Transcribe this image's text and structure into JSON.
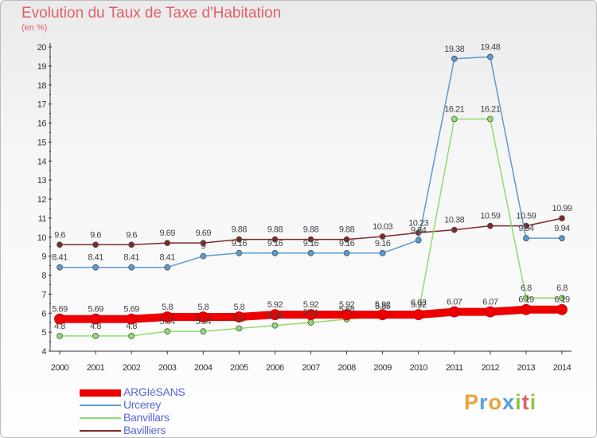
{
  "title": "Evolution du Taux de Taxe d'Habitation",
  "unit_label": "(en %)",
  "logo": {
    "letters": [
      "P",
      "r",
      "o",
      "x",
      "i",
      "t",
      "i"
    ],
    "colors": [
      "#e8a33b",
      "#5aa0d8",
      "#e8a33b",
      "#5aa0d8",
      "#8dc63f",
      "#e0606a",
      "#8dc63f"
    ]
  },
  "chart_data": {
    "type": "line",
    "categories": [
      "2000",
      "2001",
      "2002",
      "2003",
      "2004",
      "2005",
      "2006",
      "2007",
      "2008",
      "2009",
      "2010",
      "2011",
      "2012",
      "2013",
      "2014"
    ],
    "ylim": [
      4,
      20
    ],
    "yticks": [
      "4",
      "5",
      "6",
      "7",
      "8",
      "9",
      "10",
      "11",
      "12",
      "13",
      "14",
      "15",
      "16",
      "17",
      "18",
      "19",
      "20"
    ],
    "grid": false,
    "legend_position": "bottom-left",
    "series": [
      {
        "name": "Bavilliers",
        "color": "#7d2a2a",
        "values": [
          9.6,
          9.6,
          9.6,
          9.69,
          9.69,
          9.88,
          9.88,
          9.88,
          9.88,
          10.03,
          10.23,
          10.38,
          10.59,
          10.59,
          10.99
        ],
        "labels": [
          "9.6",
          "9.6",
          "9.6",
          "9.69",
          "9.69",
          "9.88",
          "9.88",
          "9.88",
          "9.88",
          "10.03",
          "10.23",
          "10.38",
          "10.59",
          "10.59",
          "10.99"
        ]
      },
      {
        "name": "Urcerey",
        "color": "#5a9bd4",
        "values": [
          8.41,
          8.41,
          8.41,
          8.41,
          9,
          9.16,
          9.16,
          9.16,
          9.16,
          9.16,
          9.84,
          19.38,
          19.48,
          9.94,
          9.94
        ],
        "labels": [
          "8.41",
          "8.41",
          "8.41",
          "8.41",
          "9",
          "9.16",
          "9.16",
          "9.16",
          "9.16",
          "9.16",
          "9.84",
          "19.38",
          "19.48",
          "9.94",
          "9.94"
        ]
      },
      {
        "name": "Banvillars",
        "color": "#8fdc6b",
        "values": [
          4.8,
          4.8,
          4.8,
          5.04,
          5.04,
          5.2,
          5.35,
          5.51,
          5.68,
          5.85,
          6.03,
          16.21,
          16.21,
          6.8,
          6.8
        ],
        "labels": [
          "4.8",
          "4.8",
          "4.8",
          "5.04",
          "5.04",
          "5.2",
          "5.35",
          "5.51",
          "5.68",
          "5.85",
          "6.03",
          "16.21",
          "16.21",
          "6.8",
          "6.8"
        ]
      },
      {
        "name": "ARGIéSANS",
        "color": "#ee0000",
        "values": [
          5.69,
          5.69,
          5.69,
          5.8,
          5.8,
          5.8,
          5.92,
          5.92,
          5.92,
          5.92,
          5.92,
          6.07,
          6.07,
          6.19,
          6.19
        ],
        "labels": [
          "5.69",
          "5.69",
          "5.69",
          "5.8",
          "5.8",
          "5.8",
          "5.92",
          "5.92",
          "5.92",
          "5.92",
          "5.92",
          "6.07",
          "6.07",
          "6.19",
          "6.19"
        ]
      }
    ],
    "legend": [
      "ARGIéSANS",
      "Urcerey",
      "Banvillars",
      "Bavilliers"
    ]
  }
}
